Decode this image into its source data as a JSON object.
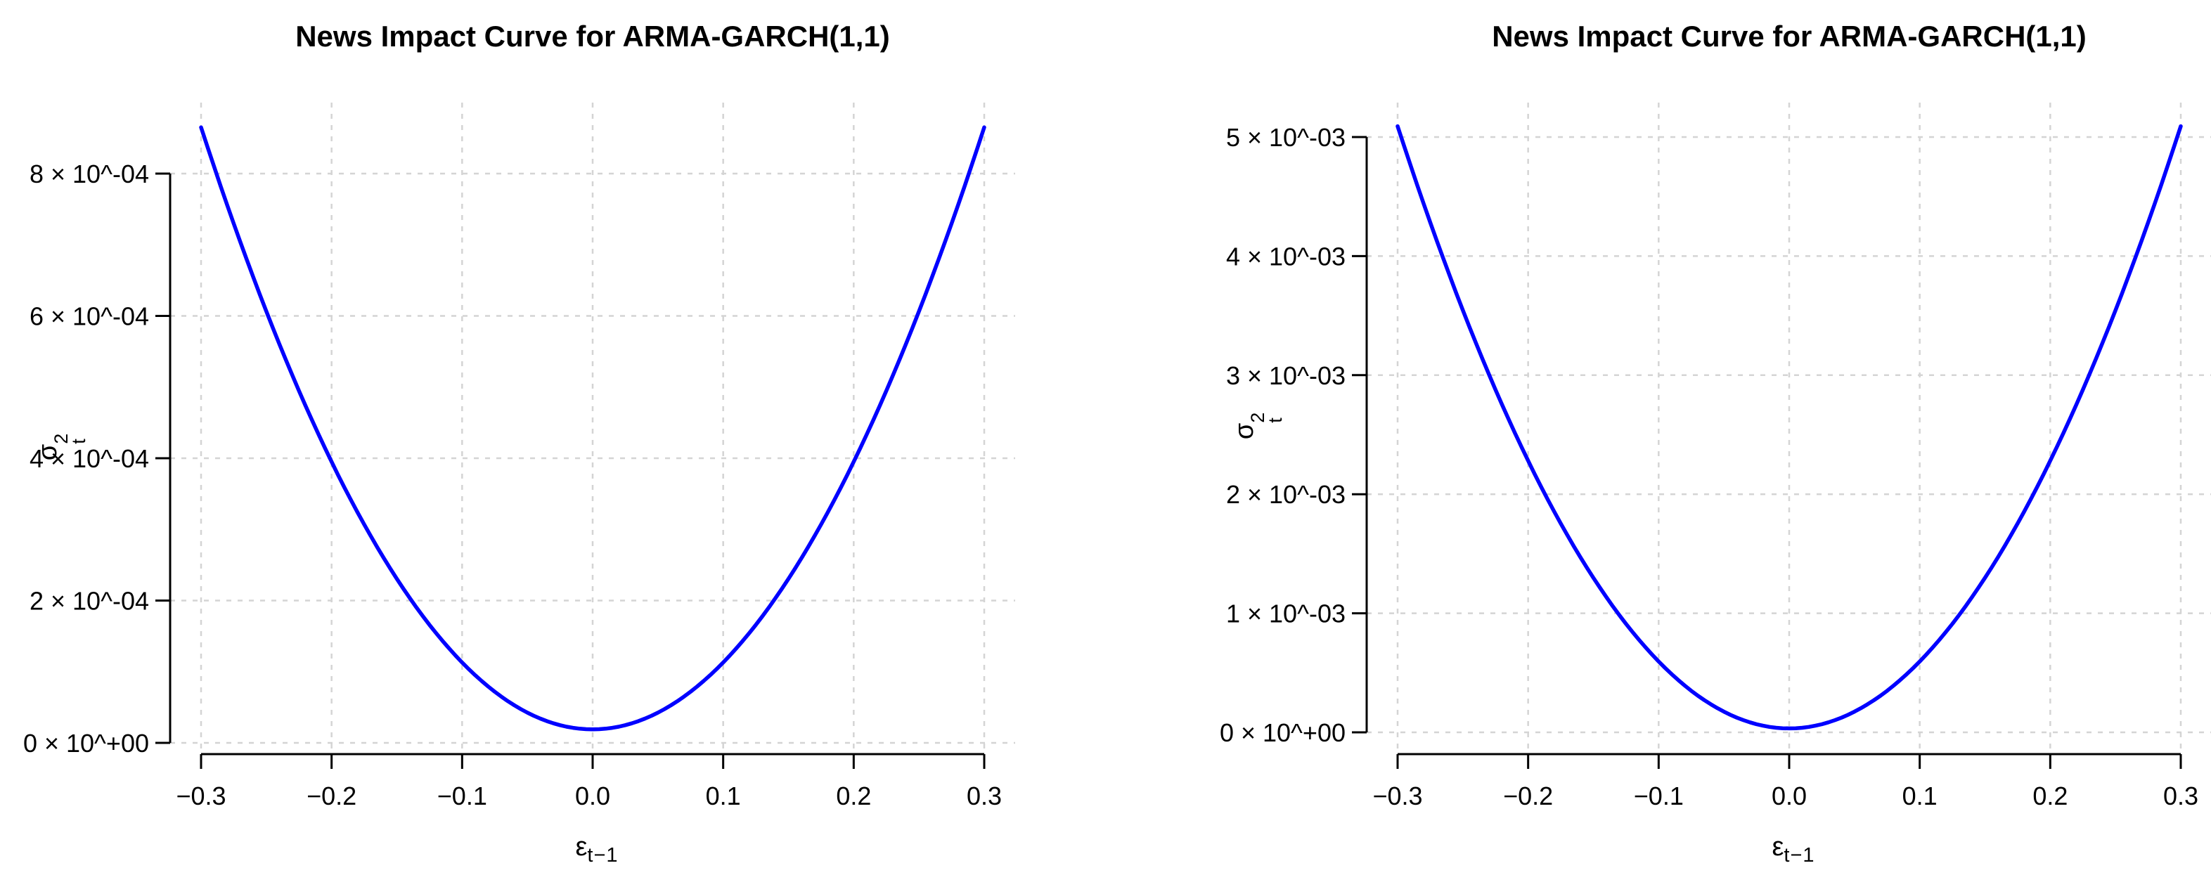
{
  "figure": {
    "background": "#ffffff",
    "axis_color": "#000000",
    "grid_color": "#d4d4d4",
    "curve_color": "#0000FF"
  },
  "panels": [
    {
      "title": "News Impact Curve for ARMA-GARCH(1,1)",
      "xlabel_base": "ε",
      "xlabel_sub": "t−1",
      "ylabel_base": "σ",
      "ylabel_sup": "2",
      "ylabel_sub": "t"
    },
    {
      "title": "News Impact Curve for ARMA-GARCH(1,1)",
      "xlabel_base": "ε",
      "xlabel_sub": "t−1",
      "ylabel_base": "σ",
      "ylabel_sup": "2",
      "ylabel_sub": "t"
    }
  ],
  "chart_data": [
    {
      "type": "line",
      "title": "News Impact Curve for ARMA-GARCH(1,1)",
      "xlabel": "ε_(t−1)",
      "ylabel": "σ_t^2",
      "x_range": [
        -0.3,
        0.3
      ],
      "x_tick_values": [
        -0.3,
        -0.2,
        -0.1,
        0.0,
        0.1,
        0.2,
        0.3
      ],
      "x_tick_labels": [
        "−0.3",
        "−0.2",
        "−0.1",
        "0.0",
        "0.1",
        "0.2",
        "0.3"
      ],
      "y_tick_values": [
        0,
        0.0002,
        0.0004,
        0.0006,
        0.0008
      ],
      "y_tick_labels": [
        "0 × 10^+00",
        "2 × 10^-04",
        "4 × 10^-04",
        "6 × 10^-04",
        "8 × 10^-04"
      ],
      "ylim": [
        0,
        0.0009
      ],
      "grid": {
        "visible": true,
        "style": "dashed",
        "color": "#d4d4d4"
      },
      "legend": "none",
      "series": [
        {
          "name": "news-impact-curve",
          "color": "#0000FF",
          "model": "sigma2(eps) = omega + alpha * eps^2",
          "omega": 1.9e-05,
          "alpha": 0.0094,
          "x": [
            -0.3,
            -0.25,
            -0.2,
            -0.15,
            -0.1,
            -0.05,
            0,
            0.05,
            0.1,
            0.15,
            0.2,
            0.25,
            0.3
          ],
          "y": [
            0.000865,
            0.000607,
            0.000395,
            0.000231,
            0.000113,
            4.25e-05,
            1.9e-05,
            4.25e-05,
            0.000113,
            0.000231,
            0.000395,
            0.000607,
            0.000865
          ]
        }
      ]
    },
    {
      "type": "line",
      "title": "News Impact Curve for ARMA-GARCH(1,1)",
      "xlabel": "ε_(t−1)",
      "ylabel": "σ_t^2",
      "x_range": [
        -0.3,
        0.3
      ],
      "x_tick_values": [
        -0.3,
        -0.2,
        -0.1,
        0.0,
        0.1,
        0.2,
        0.3
      ],
      "x_tick_labels": [
        "−0.3",
        "−0.2",
        "−0.1",
        "0.0",
        "0.1",
        "0.2",
        "0.3"
      ],
      "y_tick_values": [
        0,
        0.001,
        0.002,
        0.003,
        0.004,
        0.005
      ],
      "y_tick_labels": [
        "0 × 10^+00",
        "1 × 10^-03",
        "2 × 10^-03",
        "3 × 10^-03",
        "4 × 10^-03",
        "5 × 10^-03"
      ],
      "ylim": [
        0,
        0.0052
      ],
      "grid": {
        "visible": true,
        "style": "dashed",
        "color": "#d4d4d4"
      },
      "legend": "none",
      "series": [
        {
          "name": "news-impact-curve",
          "color": "#0000FF",
          "model": "sigma2(eps) = omega + alpha * eps^2",
          "omega": 3.3e-05,
          "alpha": 0.0562,
          "x": [
            -0.3,
            -0.25,
            -0.2,
            -0.15,
            -0.1,
            -0.05,
            0,
            0.05,
            0.1,
            0.15,
            0.2,
            0.25,
            0.3
          ],
          "y": [
            0.00509,
            0.003546,
            0.002281,
            0.001298,
            0.000595,
            0.000174,
            3.3e-05,
            0.000174,
            0.000595,
            0.001298,
            0.002281,
            0.003546,
            0.00509
          ]
        }
      ]
    }
  ]
}
